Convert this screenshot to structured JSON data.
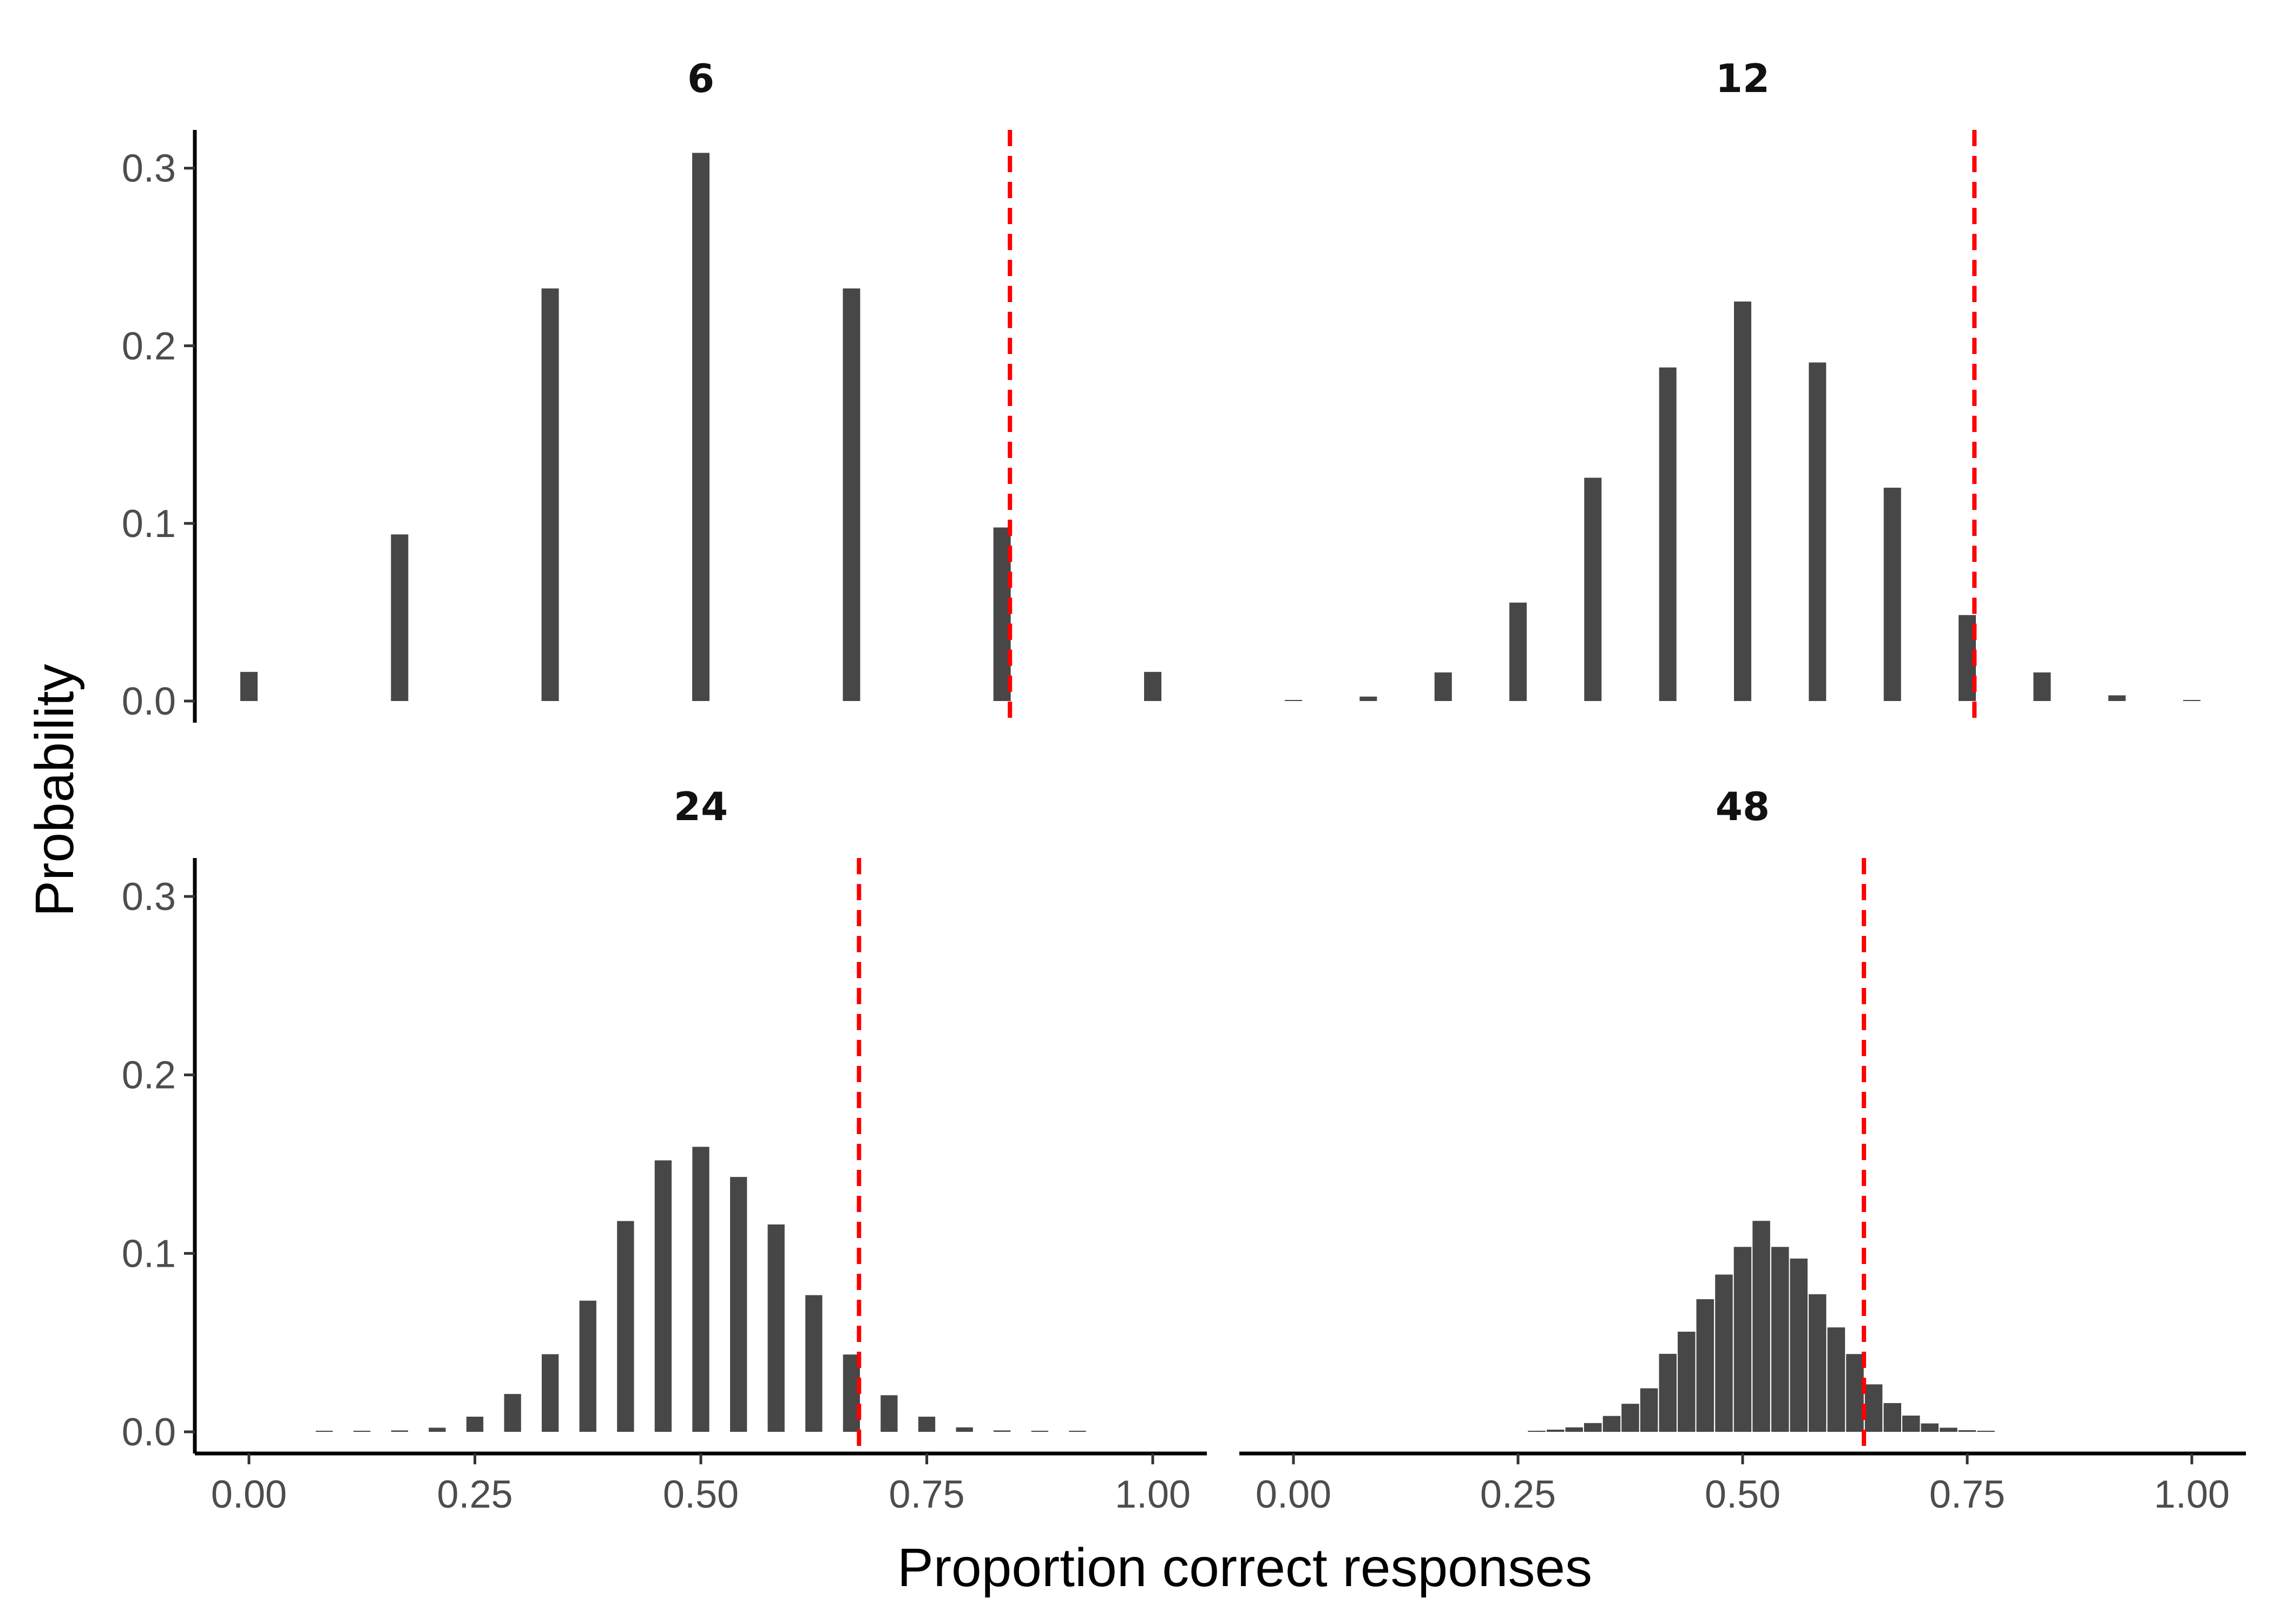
{
  "chart_data": {
    "type": "bar",
    "xlabel": "Proportion correct responses",
    "ylabel": "Probability",
    "xlim": [
      0,
      1
    ],
    "ylim": [
      0,
      0.3
    ],
    "x_ticks": [
      "0.00",
      "0.25",
      "0.50",
      "0.75",
      "1.00"
    ],
    "y_ticks": [
      "0.0",
      "0.1",
      "0.2",
      "0.3"
    ],
    "grid": false,
    "legend": "none",
    "bar_color": "#474747",
    "reference_line_color": "#ff0000",
    "panels": [
      {
        "label": "6",
        "n": 6,
        "reference_line_x": 0.842,
        "x": [
          0,
          0.1667,
          0.3333,
          0.5,
          0.6667,
          0.8333,
          1
        ],
        "values": [
          0.0164,
          0.0938,
          0.2323,
          0.3086,
          0.2323,
          0.0977,
          0.0164
        ]
      },
      {
        "label": "12",
        "n": 12,
        "reference_line_x": 0.758,
        "x": [
          0,
          0.0833,
          0.1667,
          0.25,
          0.3333,
          0.4167,
          0.5,
          0.5833,
          0.6667,
          0.75,
          0.8333,
          0.9167,
          1
        ],
        "values": [
          0.0002,
          0.0025,
          0.0161,
          0.0554,
          0.1257,
          0.1878,
          0.2249,
          0.1906,
          0.1201,
          0.0484,
          0.0161,
          0.0032,
          0.0002
        ]
      },
      {
        "label": "24",
        "n": 24,
        "reference_line_x": 0.675,
        "x": [
          0,
          0.0417,
          0.0833,
          0.125,
          0.1667,
          0.2083,
          0.25,
          0.2917,
          0.3333,
          0.375,
          0.4167,
          0.4583,
          0.5,
          0.5417,
          0.5833,
          0.625,
          0.6667,
          0.7083,
          0.75,
          0.7917,
          0.8333,
          0.875,
          0.9167,
          0.9583,
          1
        ],
        "values": [
          0,
          0,
          0.0002,
          0.0005,
          0.0008,
          0.0023,
          0.0085,
          0.0212,
          0.0435,
          0.0735,
          0.1181,
          0.1521,
          0.1597,
          0.1428,
          0.1162,
          0.0766,
          0.0433,
          0.0205,
          0.0085,
          0.0025,
          0.0008,
          0.0005,
          0.0002,
          0,
          0
        ]
      },
      {
        "label": "48",
        "n": 48,
        "reference_line_x": 0.635,
        "x": [
          0,
          0.0208,
          0.0417,
          0.0625,
          0.0833,
          0.1042,
          0.125,
          0.1458,
          0.1667,
          0.1875,
          0.2083,
          0.2292,
          0.25,
          0.2708,
          0.2917,
          0.3125,
          0.3333,
          0.3542,
          0.375,
          0.3958,
          0.4167,
          0.4375,
          0.4583,
          0.4792,
          0.5,
          0.5208,
          0.5417,
          0.5625,
          0.5833,
          0.6042,
          0.625,
          0.6458,
          0.6667,
          0.6875,
          0.7083,
          0.7292,
          0.75,
          0.7708,
          0.7917,
          0.8125,
          0.8333,
          0.8542,
          0.875,
          0.8958,
          0.9167,
          0.9375,
          0.9583,
          0.9792,
          1
        ],
        "values": [
          0,
          0,
          0,
          0,
          0,
          0,
          0,
          0,
          0,
          0,
          0,
          0,
          0,
          0.0005,
          0.0012,
          0.0025,
          0.0049,
          0.0089,
          0.0157,
          0.0244,
          0.0437,
          0.0561,
          0.0743,
          0.0881,
          0.1036,
          0.1182,
          0.1036,
          0.0971,
          0.0771,
          0.0585,
          0.0436,
          0.0266,
          0.0161,
          0.0091,
          0.0047,
          0.0023,
          0.0009,
          0.0002,
          0,
          0,
          0,
          0,
          0,
          0,
          0,
          0,
          0,
          0,
          0
        ]
      }
    ]
  }
}
